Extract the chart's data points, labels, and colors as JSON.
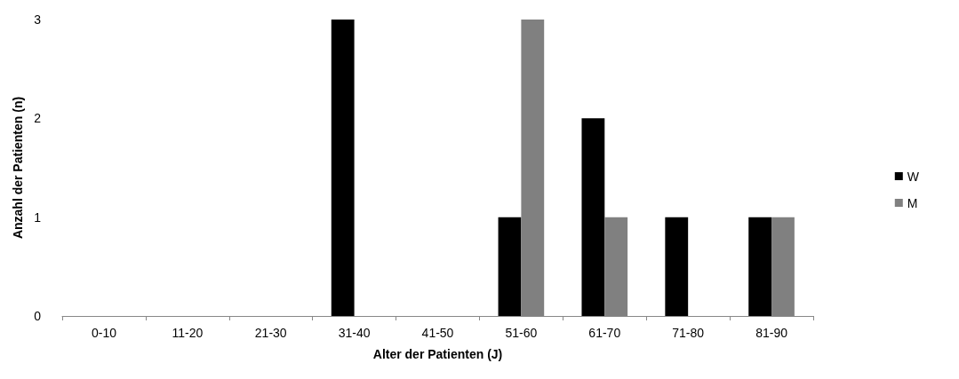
{
  "chart_data": {
    "type": "bar",
    "xlabel": "Alter der Patienten (J)",
    "ylabel": "Anzahl der Patienten (n)",
    "categories": [
      "0-10",
      "11-20",
      "21-30",
      "31-40",
      "41-50",
      "51-60",
      "61-70",
      "71-80",
      "81-90"
    ],
    "series": [
      {
        "name": "W",
        "color": "#000000",
        "values": [
          0,
          0,
          0,
          3,
          0,
          1,
          2,
          1,
          1
        ]
      },
      {
        "name": "M",
        "color": "#808080",
        "values": [
          0,
          0,
          0,
          0,
          0,
          3,
          1,
          0,
          1
        ]
      }
    ],
    "ylim": [
      0,
      3
    ],
    "yticks": [
      0,
      1,
      2,
      3
    ],
    "grid": false,
    "legend": "right"
  }
}
